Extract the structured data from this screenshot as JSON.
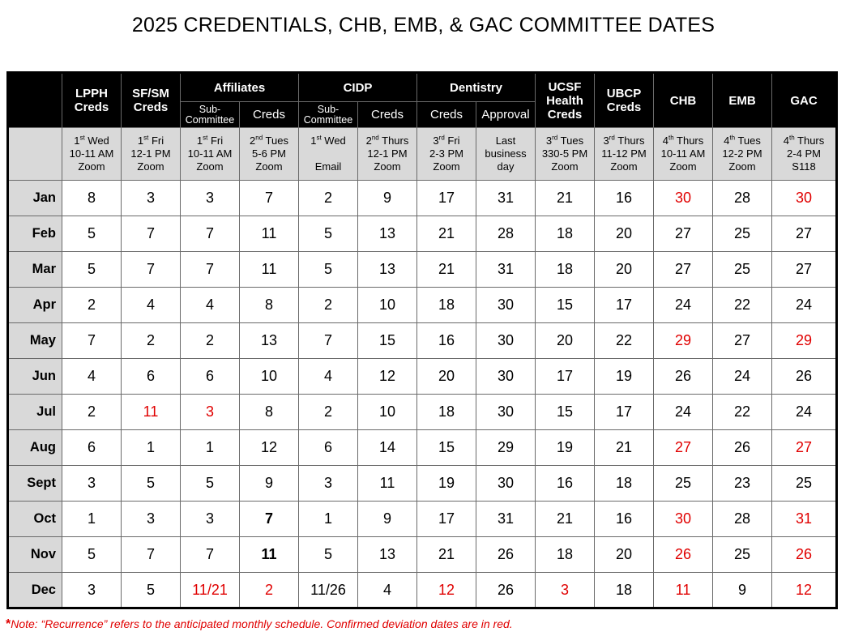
{
  "title": "2025 CREDENTIALS, CHB, EMB, & GAC COMMITTEE DATES",
  "header": {
    "lpph": {
      "line1": "LPPH",
      "line2": "Creds"
    },
    "sfsm": {
      "line1": "SF/SM",
      "line2": "Creds"
    },
    "affiliates": "Affiliates",
    "affiliates_sub": {
      "line1": "Sub-",
      "line2": "Committee"
    },
    "affiliates_creds": "Creds",
    "cidp": "CIDP",
    "cidp_sub": {
      "line1": "Sub-",
      "line2": "Committee"
    },
    "cidp_creds": "Creds",
    "dentistry": "Dentistry",
    "dentistry_creds": "Creds",
    "dentistry_approval": "Approval",
    "ucsf": {
      "line1": "UCSF",
      "line2": "Health",
      "line3": "Creds"
    },
    "ubcp": {
      "line1": "UBCP",
      "line2": "Creds"
    },
    "chb": "CHB",
    "emb": "EMB",
    "gac": "GAC"
  },
  "schedule": [
    {
      "ord_num": "1",
      "ord_sfx": "st",
      "day": "Wed",
      "time": "10-11 AM",
      "place": "Zoom"
    },
    {
      "ord_num": "1",
      "ord_sfx": "st",
      "day": "Fri",
      "time": "12-1 PM",
      "place": "Zoom"
    },
    {
      "ord_num": "1",
      "ord_sfx": "st",
      "day": "Fri",
      "time": "10-11 AM",
      "place": "Zoom"
    },
    {
      "ord_num": "2",
      "ord_sfx": "nd",
      "day": "Tues",
      "time": "5-6 PM",
      "place": "Zoom"
    },
    {
      "ord_num": "1",
      "ord_sfx": "st",
      "day": "Wed",
      "time": "",
      "place": "Email"
    },
    {
      "ord_num": "2",
      "ord_sfx": "nd",
      "day": "Thurs",
      "time": "12-1 PM",
      "place": "Zoom"
    },
    {
      "ord_num": "3",
      "ord_sfx": "rd",
      "day": "Fri",
      "time": "2-3 PM",
      "place": "Zoom"
    },
    {
      "ord_num": "",
      "ord_sfx": "",
      "day": "Last",
      "time": "business",
      "place": "day"
    },
    {
      "ord_num": "3",
      "ord_sfx": "rd",
      "day": "Tues",
      "time": "330-5 PM",
      "place": "Zoom"
    },
    {
      "ord_num": "3",
      "ord_sfx": "rd",
      "day": "Thurs",
      "time": "11-12 PM",
      "place": "Zoom"
    },
    {
      "ord_num": "4",
      "ord_sfx": "th",
      "day": "Thurs",
      "time": "10-11 AM",
      "place": "Zoom"
    },
    {
      "ord_num": "4",
      "ord_sfx": "th",
      "day": "Tues",
      "time": "12-2 PM",
      "place": "Zoom"
    },
    {
      "ord_num": "4",
      "ord_sfx": "th",
      "day": "Thurs",
      "time": "2-4 PM",
      "place": "S118"
    }
  ],
  "rows": [
    {
      "month": "Jan",
      "cells": [
        {
          "v": "8"
        },
        {
          "v": "3"
        },
        {
          "v": "3"
        },
        {
          "v": "7"
        },
        {
          "v": "2"
        },
        {
          "v": "9"
        },
        {
          "v": "17"
        },
        {
          "v": "31"
        },
        {
          "v": "21"
        },
        {
          "v": "16"
        },
        {
          "v": "30",
          "red": true
        },
        {
          "v": "28"
        },
        {
          "v": "30",
          "red": true
        }
      ]
    },
    {
      "month": "Feb",
      "cells": [
        {
          "v": "5"
        },
        {
          "v": "7"
        },
        {
          "v": "7"
        },
        {
          "v": "11"
        },
        {
          "v": "5"
        },
        {
          "v": "13"
        },
        {
          "v": "21"
        },
        {
          "v": "28"
        },
        {
          "v": "18"
        },
        {
          "v": "20"
        },
        {
          "v": "27"
        },
        {
          "v": "25"
        },
        {
          "v": "27"
        }
      ]
    },
    {
      "month": "Mar",
      "cells": [
        {
          "v": "5"
        },
        {
          "v": "7"
        },
        {
          "v": "7"
        },
        {
          "v": "11"
        },
        {
          "v": "5"
        },
        {
          "v": "13"
        },
        {
          "v": "21"
        },
        {
          "v": "31"
        },
        {
          "v": "18"
        },
        {
          "v": "20"
        },
        {
          "v": "27"
        },
        {
          "v": "25"
        },
        {
          "v": "27"
        }
      ]
    },
    {
      "month": "Apr",
      "cells": [
        {
          "v": "2"
        },
        {
          "v": "4"
        },
        {
          "v": "4"
        },
        {
          "v": "8"
        },
        {
          "v": "2"
        },
        {
          "v": "10"
        },
        {
          "v": "18"
        },
        {
          "v": "30"
        },
        {
          "v": "15"
        },
        {
          "v": "17"
        },
        {
          "v": "24"
        },
        {
          "v": "22"
        },
        {
          "v": "24"
        }
      ]
    },
    {
      "month": "May",
      "cells": [
        {
          "v": "7"
        },
        {
          "v": "2"
        },
        {
          "v": "2"
        },
        {
          "v": "13"
        },
        {
          "v": "7"
        },
        {
          "v": "15"
        },
        {
          "v": "16"
        },
        {
          "v": "30"
        },
        {
          "v": "20"
        },
        {
          "v": "22"
        },
        {
          "v": "29",
          "red": true
        },
        {
          "v": "27"
        },
        {
          "v": "29",
          "red": true
        }
      ]
    },
    {
      "month": "Jun",
      "cells": [
        {
          "v": "4"
        },
        {
          "v": "6"
        },
        {
          "v": "6"
        },
        {
          "v": "10"
        },
        {
          "v": "4"
        },
        {
          "v": "12"
        },
        {
          "v": "20"
        },
        {
          "v": "30"
        },
        {
          "v": "17"
        },
        {
          "v": "19"
        },
        {
          "v": "26"
        },
        {
          "v": "24"
        },
        {
          "v": "26"
        }
      ]
    },
    {
      "month": "Jul",
      "cells": [
        {
          "v": "2"
        },
        {
          "v": "11",
          "red": true
        },
        {
          "v": "3",
          "red": true
        },
        {
          "v": "8"
        },
        {
          "v": "2"
        },
        {
          "v": "10"
        },
        {
          "v": "18"
        },
        {
          "v": "30"
        },
        {
          "v": "15"
        },
        {
          "v": "17"
        },
        {
          "v": "24"
        },
        {
          "v": "22"
        },
        {
          "v": "24"
        }
      ]
    },
    {
      "month": "Aug",
      "cells": [
        {
          "v": "6"
        },
        {
          "v": "1"
        },
        {
          "v": "1"
        },
        {
          "v": "12"
        },
        {
          "v": "6"
        },
        {
          "v": "14"
        },
        {
          "v": "15"
        },
        {
          "v": "29"
        },
        {
          "v": "19"
        },
        {
          "v": "21"
        },
        {
          "v": "27",
          "red": true
        },
        {
          "v": "26"
        },
        {
          "v": "27",
          "red": true
        }
      ]
    },
    {
      "month": "Sept",
      "cells": [
        {
          "v": "3"
        },
        {
          "v": "5"
        },
        {
          "v": "5"
        },
        {
          "v": "9"
        },
        {
          "v": "3"
        },
        {
          "v": "11"
        },
        {
          "v": "19"
        },
        {
          "v": "30"
        },
        {
          "v": "16"
        },
        {
          "v": "18"
        },
        {
          "v": "25"
        },
        {
          "v": "23"
        },
        {
          "v": "25"
        }
      ]
    },
    {
      "month": "Oct",
      "cells": [
        {
          "v": "1"
        },
        {
          "v": "3"
        },
        {
          "v": "3"
        },
        {
          "v": "7",
          "bold": true
        },
        {
          "v": "1"
        },
        {
          "v": "9"
        },
        {
          "v": "17"
        },
        {
          "v": "31"
        },
        {
          "v": "21"
        },
        {
          "v": "16"
        },
        {
          "v": "30",
          "red": true
        },
        {
          "v": "28"
        },
        {
          "v": "31",
          "red": true
        }
      ]
    },
    {
      "month": "Nov",
      "cells": [
        {
          "v": "5"
        },
        {
          "v": "7"
        },
        {
          "v": "7"
        },
        {
          "v": "11",
          "bold": true
        },
        {
          "v": "5"
        },
        {
          "v": "13"
        },
        {
          "v": "21"
        },
        {
          "v": "26"
        },
        {
          "v": "18"
        },
        {
          "v": "20"
        },
        {
          "v": "26",
          "red": true
        },
        {
          "v": "25"
        },
        {
          "v": "26",
          "red": true
        }
      ]
    },
    {
      "month": "Dec",
      "cells": [
        {
          "v": "3"
        },
        {
          "v": "5"
        },
        {
          "v": "11/21",
          "red": true
        },
        {
          "v": "2",
          "red": true
        },
        {
          "v": "11/26"
        },
        {
          "v": "4"
        },
        {
          "v": "12",
          "red": true
        },
        {
          "v": "26"
        },
        {
          "v": "3",
          "red": true
        },
        {
          "v": "18"
        },
        {
          "v": "11",
          "red": true
        },
        {
          "v": "9"
        },
        {
          "v": "12",
          "red": true
        }
      ]
    }
  ],
  "note": {
    "star": "*",
    "text": "Note: “Recurrence” refers to the anticipated monthly schedule. Confirmed deviation dates are in red."
  },
  "colors": {
    "deviation": "#e00000",
    "header_bg": "#000000",
    "shade": "#d9d9d9"
  }
}
